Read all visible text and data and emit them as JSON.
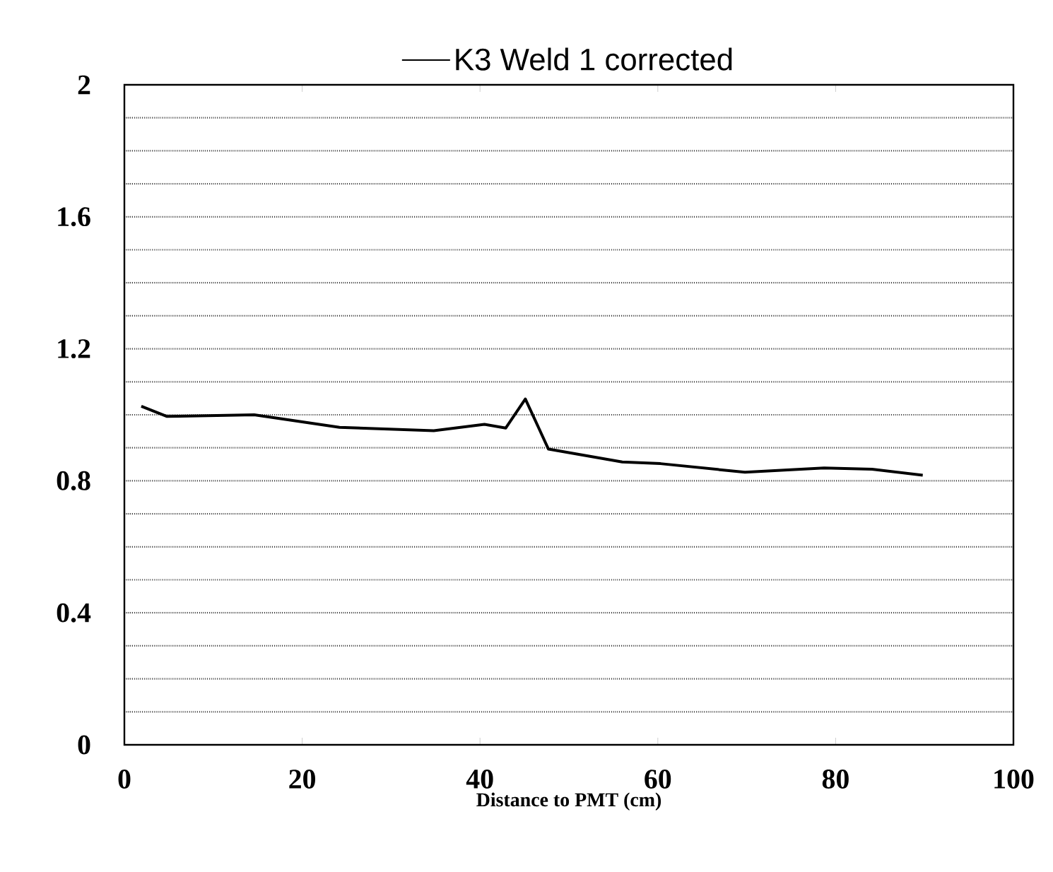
{
  "chart_data": {
    "type": "line",
    "xlabel": "Distance to PMT (cm)",
    "x": [
      1.9,
      4.8,
      14.6,
      24.2,
      34.8,
      40.5,
      42.9,
      45.1,
      47.7,
      56,
      60.3,
      69.8,
      78.7,
      84.1,
      89.8
    ],
    "series": [
      {
        "name": "K3 Weld 1 corrected",
        "color": "#000000",
        "values": [
          1.026,
          0.995,
          1.0,
          0.962,
          0.952,
          0.971,
          0.96,
          1.048,
          0.896,
          0.857,
          0.852,
          0.826,
          0.839,
          0.835,
          0.817
        ]
      }
    ],
    "xlim": [
      0,
      100
    ],
    "xticks": [
      0,
      20,
      40,
      60,
      80,
      100
    ],
    "ylim": [
      0,
      2
    ],
    "yticks": [
      0,
      {
        "value": 0.1,
        "label": null
      },
      {
        "value": 0.2,
        "label": null
      },
      {
        "value": 0.3,
        "label": null
      },
      0.4,
      {
        "value": 0.5,
        "label": null
      },
      {
        "value": 0.6,
        "label": null
      },
      {
        "value": 0.7,
        "label": null
      },
      0.8,
      {
        "value": 0.9,
        "label": null
      },
      {
        "value": 1.0,
        "label": null
      },
      {
        "value": 1.1,
        "label": null
      },
      1.2,
      {
        "value": 1.3,
        "label": null
      },
      {
        "value": 1.4,
        "label": null
      },
      {
        "value": 1.5,
        "label": null
      },
      1.6,
      {
        "value": 1.7,
        "label": null
      },
      {
        "value": 1.8,
        "label": null
      },
      {
        "value": 1.9,
        "label": null
      },
      2
    ],
    "grid": "y",
    "legend": "top",
    "marker": "none",
    "line_style": "solid"
  }
}
